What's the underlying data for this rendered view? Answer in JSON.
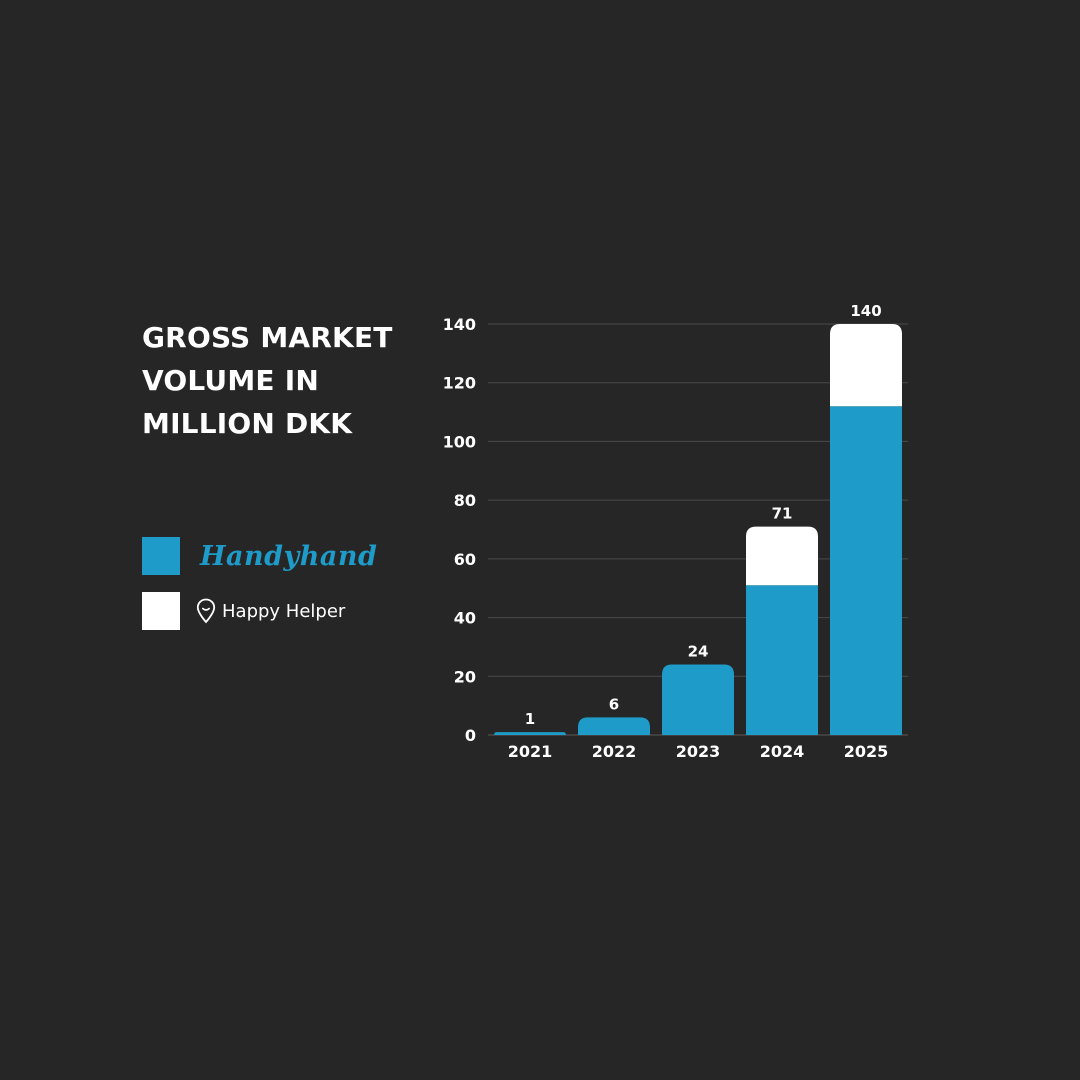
{
  "chart_data": {
    "type": "bar",
    "stacked": true,
    "title": "GROSS MARKET VOLUME IN MILLION DKK",
    "categories": [
      "2021",
      "2022",
      "2023",
      "2024",
      "2025"
    ],
    "series": [
      {
        "name": "Handyhand",
        "values": [
          1,
          6,
          24,
          51,
          112
        ],
        "color": "#1f9bc9"
      },
      {
        "name": "Happy Helper",
        "values": [
          0,
          0,
          0,
          20,
          28
        ],
        "color": "#ffffff"
      }
    ],
    "totals": [
      "1",
      "6",
      "24",
      "71",
      "140"
    ],
    "yticks": [
      "0",
      "20",
      "40",
      "60",
      "80",
      "100",
      "120",
      "140"
    ],
    "ylim": [
      0,
      140
    ],
    "grid": true,
    "legend_position": "left"
  },
  "colors": {
    "background": "#262626",
    "handyhand": "#1f9bc9",
    "happy_helper": "#ffffff",
    "grid": "#4a4a4a"
  },
  "legend": {
    "items": [
      {
        "label": "Handyhand",
        "color": "#1f9bc9"
      },
      {
        "label": "Happy Helper",
        "color": "#ffffff",
        "icon": "location-pin-icon"
      }
    ]
  }
}
